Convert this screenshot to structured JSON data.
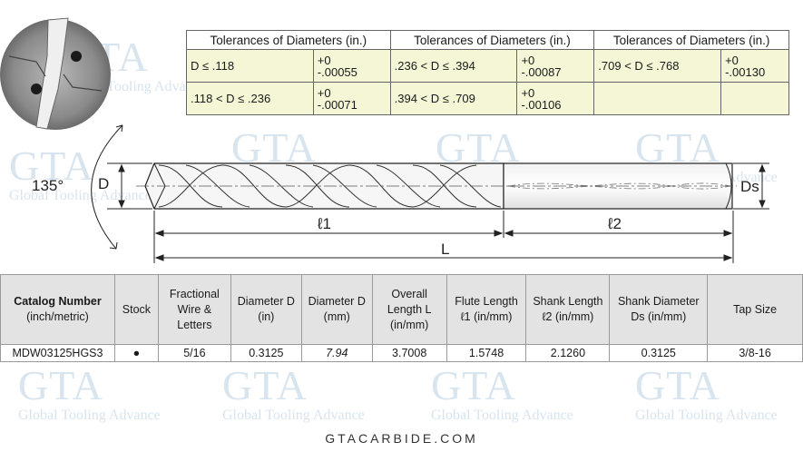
{
  "watermark": {
    "brand": "GTA",
    "tagline": "Global Tooling Advance"
  },
  "tolerance_table": {
    "header": "Tolerances of Diameters (in.)",
    "columns": [
      {
        "rows": [
          {
            "condition": "D ≤ .118",
            "upper": "+0",
            "lower": "-.00055"
          },
          {
            "condition": ".118 < D ≤ .236",
            "upper": "+0",
            "lower": "-.00071"
          }
        ]
      },
      {
        "rows": [
          {
            "condition": ".236 < D ≤ .394",
            "upper": "+0",
            "lower": "-.00087"
          },
          {
            "condition": ".394 < D ≤ .709",
            "upper": "+0",
            "lower": "-.00106"
          }
        ]
      },
      {
        "rows": [
          {
            "condition": ".709 < D ≤ .768",
            "upper": "+0",
            "lower": "-.00130"
          },
          {
            "condition": "",
            "upper": "",
            "lower": ""
          }
        ]
      }
    ]
  },
  "drawing": {
    "angle_label": "135°",
    "d_label": "D",
    "ds_label": "Ds",
    "l1_label": "ℓ1",
    "l2_label": "ℓ2",
    "l_label": "L"
  },
  "spec_table": {
    "headers": [
      {
        "bold": "Catalog Number",
        "sub": "(inch/metric)"
      },
      {
        "text": "Stock"
      },
      {
        "text": "Fractional Wire & Letters"
      },
      {
        "text": "Diameter D (in)"
      },
      {
        "text": "Diameter D (mm)"
      },
      {
        "text": "Overall Length L (in/mm)"
      },
      {
        "text": "Flute Length ℓ1 (in/mm)"
      },
      {
        "text": "Shank Length ℓ2 (in/mm)"
      },
      {
        "text": "Shank Diameter Ds (in/mm)"
      },
      {
        "text": "Tap Size"
      }
    ],
    "row": {
      "catalog": "MDW03125HGS3",
      "stock": "●",
      "fraction": "5/16",
      "dia_in": "0.3125",
      "dia_mm": "7.94",
      "overall": "3.7008",
      "flute": "1.5748",
      "shank_len": "2.1260",
      "shank_dia": "0.3125",
      "tap": "3/8-16"
    }
  },
  "footer": "GTACARBIDE.COM"
}
